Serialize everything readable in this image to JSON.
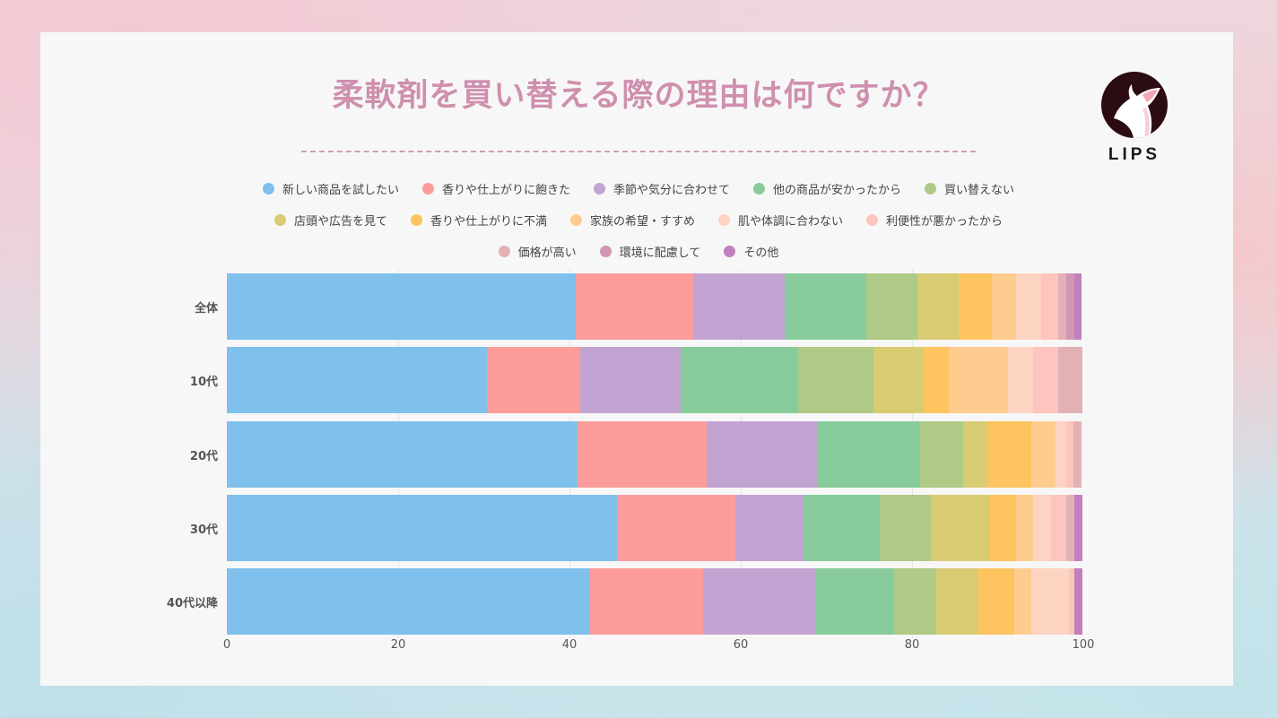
{
  "title": "柔軟剤を買い替える際の理由は何ですか？",
  "logo": {
    "text": "LIPS",
    "icon": "fawn-logo-icon"
  },
  "chart_data": {
    "type": "bar",
    "orientation": "horizontal",
    "stacked": true,
    "title": "柔軟剤を買い替える際の理由は何ですか？",
    "xlabel": "",
    "ylabel": "",
    "xlim": [
      0,
      100
    ],
    "xticks": [
      "0",
      "20",
      "40",
      "60",
      "80",
      "100"
    ],
    "legend_position": "top",
    "categories": [
      "全体",
      "10代",
      "20代",
      "30代",
      "40代以降"
    ],
    "series": [
      {
        "name": "新しい商品を試したい",
        "color": "#7fc0ec",
        "values": [
          40.7,
          30.4,
          40.9,
          45.5,
          42.4
        ]
      },
      {
        "name": "香りや仕上がりに飽きた",
        "color": "#fc9d9b",
        "values": [
          13.7,
          10.9,
          15.1,
          13.9,
          13.2
        ]
      },
      {
        "name": "季節や気分に合わせて",
        "color": "#c2a4d2",
        "values": [
          10.7,
          11.7,
          13.0,
          7.9,
          13.1
        ]
      },
      {
        "name": "他の商品が安かったから",
        "color": "#88cc9b",
        "values": [
          9.6,
          13.7,
          11.9,
          8.9,
          9.1
        ]
      },
      {
        "name": "買い替えない",
        "color": "#aeca86",
        "values": [
          5.9,
          8.8,
          5.1,
          6.0,
          5.0
        ]
      },
      {
        "name": "店頭や広告を見て",
        "color": "#d9cb72",
        "values": [
          4.8,
          5.9,
          2.9,
          6.9,
          5.0
        ]
      },
      {
        "name": "香りや仕上がりに不満",
        "color": "#fdc45f",
        "values": [
          3.9,
          2.9,
          5.0,
          3.0,
          4.1
        ]
      },
      {
        "name": "家族の希望・すすめ",
        "color": "#fecc8e",
        "values": [
          2.9,
          6.9,
          2.9,
          2.0,
          2.0
        ]
      },
      {
        "name": "肌や体調に合わない",
        "color": "#fdd3c1",
        "values": [
          2.9,
          2.9,
          1.2,
          2.1,
          4.4
        ]
      },
      {
        "name": "利便性が悪かったから",
        "color": "#fdc5be",
        "values": [
          2.0,
          3.0,
          0.9,
          1.8,
          0.7
        ]
      },
      {
        "name": "価格が高い",
        "color": "#e2b1b6",
        "values": [
          0.9,
          2.8,
          0.9,
          1.0,
          0.0
        ]
      },
      {
        "name": "環境に配慮して",
        "color": "#d296b2",
        "values": [
          1.0,
          0.0,
          0.0,
          0.0,
          0.0
        ]
      },
      {
        "name": "その他",
        "color": "#c27fbd",
        "values": [
          0.8,
          0.0,
          0.0,
          0.9,
          0.9
        ]
      }
    ]
  },
  "legend_rows": [
    [
      0,
      1,
      2,
      3,
      4
    ],
    [
      5,
      6,
      7,
      8,
      9
    ],
    [
      10,
      11,
      12
    ]
  ]
}
